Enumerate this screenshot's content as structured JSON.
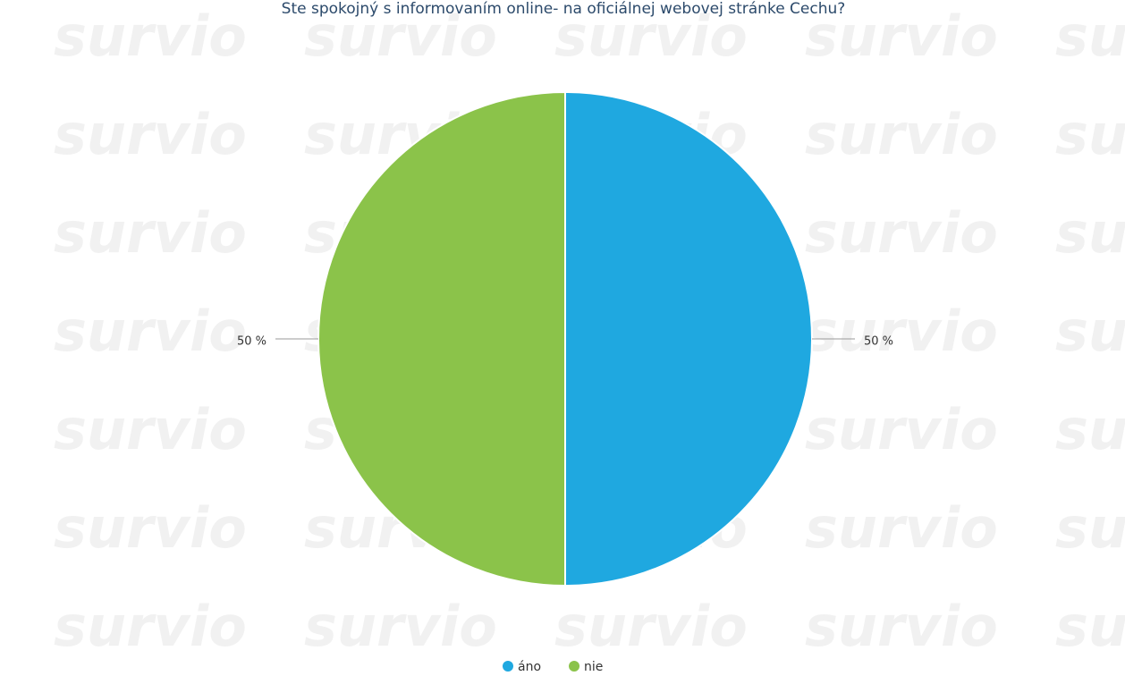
{
  "chart_data": {
    "type": "pie",
    "title": "Ste spokojný s informovaním online- na oficiálnej webovej stránke Cechu?",
    "watermark": "survio",
    "categories": [
      "áno",
      "nie"
    ],
    "values": [
      50,
      50
    ],
    "value_labels": [
      "50 %",
      "50 %"
    ],
    "colors": [
      "#1fa8e0",
      "#8bc34a"
    ],
    "legend": "bottom"
  }
}
